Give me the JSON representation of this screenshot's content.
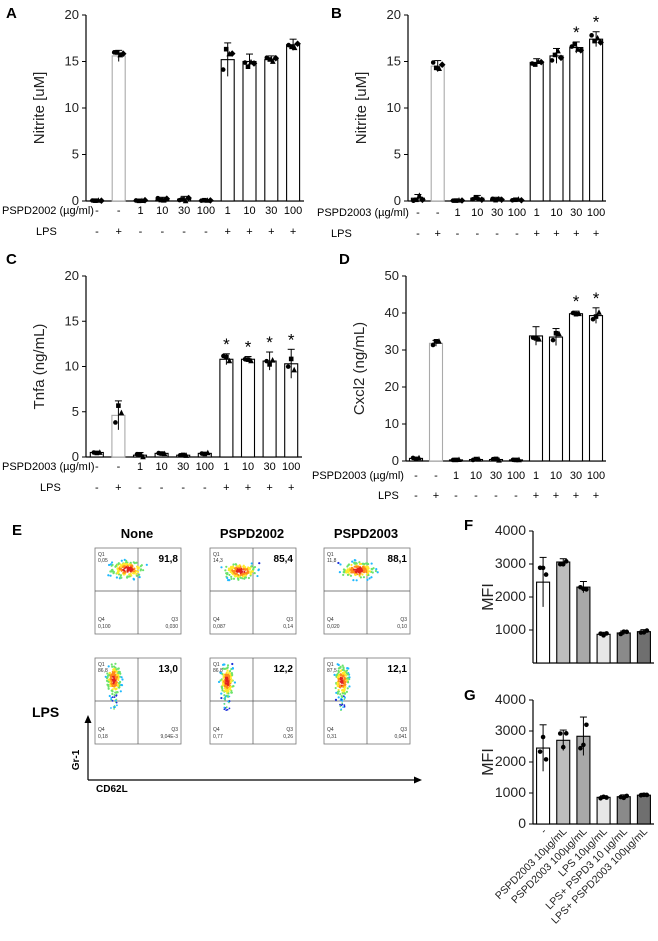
{
  "panel_letters": {
    "A": "A",
    "B": "B",
    "C": "C",
    "D": "D",
    "E": "E",
    "F": "F",
    "G": "G"
  },
  "treatment_axis": {
    "conc_labels": [
      "-",
      "-",
      "1",
      "10",
      "30",
      "100",
      "1",
      "10",
      "30",
      "100"
    ],
    "lps_labels": [
      "-",
      "+",
      "-",
      "-",
      "-",
      "-",
      "+",
      "+",
      "+",
      "+"
    ],
    "lps_row_label": "LPS"
  },
  "chart_data": [
    {
      "id": "A",
      "type": "bar",
      "ylabel": "Nitrite [uM]",
      "ylim": [
        0,
        20
      ],
      "yticks": [
        0,
        5,
        10,
        15,
        20
      ],
      "row_label": "PSPD2002 (µg/ml)",
      "categories": [
        "-/-",
        "-/+",
        "1/-",
        "10/-",
        "30/-",
        "100/-",
        "1/+",
        "10/+",
        "30/+",
        "100/+"
      ],
      "values": [
        0.05,
        15.6,
        0.05,
        0.1,
        0.2,
        0.05,
        15.2,
        15.0,
        15.2,
        16.8
      ],
      "errors": [
        0.05,
        0.6,
        0.05,
        0.3,
        0.3,
        0.05,
        1.8,
        0.8,
        0.4,
        0.6
      ],
      "significant": [
        false,
        false,
        false,
        false,
        false,
        false,
        false,
        false,
        false,
        false
      ]
    },
    {
      "id": "B",
      "type": "bar",
      "ylabel": "Nitrite [uM]",
      "ylim": [
        0,
        20
      ],
      "yticks": [
        0,
        5,
        10,
        15,
        20
      ],
      "row_label": "PSPD2003 (µg/ml)",
      "categories": [
        "-/-",
        "-/+",
        "1/-",
        "10/-",
        "30/-",
        "100/-",
        "1/+",
        "10/+",
        "30/+",
        "100/+"
      ],
      "values": [
        0.3,
        14.5,
        0.05,
        0.3,
        0.2,
        0.1,
        14.9,
        15.6,
        16.5,
        17.4
      ],
      "errors": [
        0.4,
        0.6,
        0.05,
        0.3,
        0.2,
        0.1,
        0.4,
        0.8,
        0.6,
        0.8
      ],
      "significant": [
        false,
        false,
        false,
        false,
        false,
        false,
        false,
        false,
        true,
        true
      ]
    },
    {
      "id": "C",
      "type": "bar",
      "ylabel": "Tnfa (ng/mL)",
      "ylim": [
        0,
        20
      ],
      "yticks": [
        0,
        5,
        10,
        15,
        20
      ],
      "row_label": "PSPD2003 (µg/mI)",
      "categories": [
        "-/-",
        "-/+",
        "1/-",
        "10/-",
        "30/-",
        "100/-",
        "1/+",
        "10/+",
        "30/+",
        "100/+"
      ],
      "values": [
        0.5,
        4.6,
        0.2,
        0.4,
        0.2,
        0.4,
        10.8,
        10.8,
        10.6,
        10.3
      ],
      "errors": [
        0.1,
        1.6,
        0.3,
        0.1,
        0.1,
        0.1,
        0.6,
        0.3,
        1.0,
        1.6
      ],
      "significant": [
        false,
        false,
        false,
        false,
        false,
        false,
        true,
        true,
        true,
        true
      ]
    },
    {
      "id": "D",
      "type": "bar",
      "ylabel": "Cxcl2 (ng/mL)",
      "ylim": [
        0,
        50
      ],
      "yticks": [
        0,
        10,
        20,
        30,
        40,
        50
      ],
      "row_label": "PSPD2003 (µg/ml)",
      "categories": [
        "-/-",
        "-/+",
        "1/-",
        "10/-",
        "30/-",
        "100/-",
        "1/+",
        "10/+",
        "30/+",
        "100/+"
      ],
      "values": [
        0.7,
        31.8,
        0.3,
        0.4,
        0.4,
        0.3,
        33.8,
        33.5,
        39.8,
        39.3
      ],
      "errors": [
        0.2,
        0.8,
        0.1,
        0.2,
        0.4,
        0.1,
        2.5,
        2.3,
        0.7,
        2.1
      ],
      "significant": [
        false,
        false,
        false,
        false,
        false,
        false,
        false,
        false,
        true,
        true
      ]
    },
    {
      "id": "F",
      "type": "bar",
      "ylabel": "MFI",
      "ylim": [
        0,
        4000
      ],
      "yticks": [
        1000,
        2000,
        3000,
        4000
      ],
      "categories": [
        "-",
        "PSPD2003 10µg/mL",
        "PSPD2003 100µg/mL",
        "LPS 10µg/mL",
        "LPS+ PSPD3 10 µg/mL",
        "LPS+ PSPD2003 100µg/mL"
      ],
      "values": [
        2450,
        3060,
        2300,
        870,
        910,
        950
      ],
      "errors": [
        750,
        100,
        170,
        60,
        60,
        60
      ]
    },
    {
      "id": "G",
      "type": "bar",
      "ylabel": "MFI",
      "ylim": [
        0,
        4000
      ],
      "yticks": [
        0,
        1000,
        2000,
        3000,
        4000
      ],
      "categories": [
        "-",
        "PSPD2003 10µg/mL",
        "PSPD2003 100µg/mL",
        "LPS 10µg/mL",
        "LPS+ PSPD3 10 µg/mL",
        "LPS+ PSPD2003 100µg/mL"
      ],
      "values": [
        2450,
        2700,
        2830,
        860,
        880,
        930
      ],
      "errors": [
        750,
        330,
        620,
        50,
        60,
        60
      ]
    }
  ],
  "flow": {
    "col_titles": [
      "None",
      "PSPD2002",
      "PSPD2003"
    ],
    "row_label_lps": "LPS",
    "y_axis_label": "Gr-1",
    "x_axis_label": "CD62L",
    "plots": [
      {
        "q2": "91,8",
        "q1": "0,05",
        "q4": "0,100",
        "q3": "0,030",
        "centroid": [
          0.38,
          0.4
        ]
      },
      {
        "q2": "85,4",
        "q1": "14,3",
        "q4": "0,087",
        "q3": "0,14",
        "centroid": [
          0.35,
          0.44
        ]
      },
      {
        "q2": "88,1",
        "q1": "11,8",
        "q4": "0,020",
        "q3": "0,10",
        "centroid": [
          0.4,
          0.42
        ]
      },
      {
        "q2": "13,0",
        "q1": "86,8",
        "q4": "0,18",
        "q3": "9,04E-3",
        "centroid": [
          0.22,
          0.4
        ]
      },
      {
        "q2": "12,2",
        "q1": "86,8",
        "q4": "0,77",
        "q3": "0,26",
        "centroid": [
          0.2,
          0.45
        ]
      },
      {
        "q2": "12,1",
        "q1": "87,5",
        "q4": "0,31",
        "q3": "0,041",
        "centroid": [
          0.21,
          0.45
        ]
      }
    ]
  },
  "colors": {
    "grey_bar": "#aaaaaa",
    "f_bar_fills": [
      "#ffffff",
      "#bdbdbd",
      "#a8a8a8",
      "#e6e6e6",
      "#8a8a8a",
      "#6f6f6f"
    ],
    "density": [
      "#1a2dd8",
      "#1fb9ff",
      "#6be36b",
      "#ffea2a",
      "#ff8a1a",
      "#e02020"
    ]
  }
}
